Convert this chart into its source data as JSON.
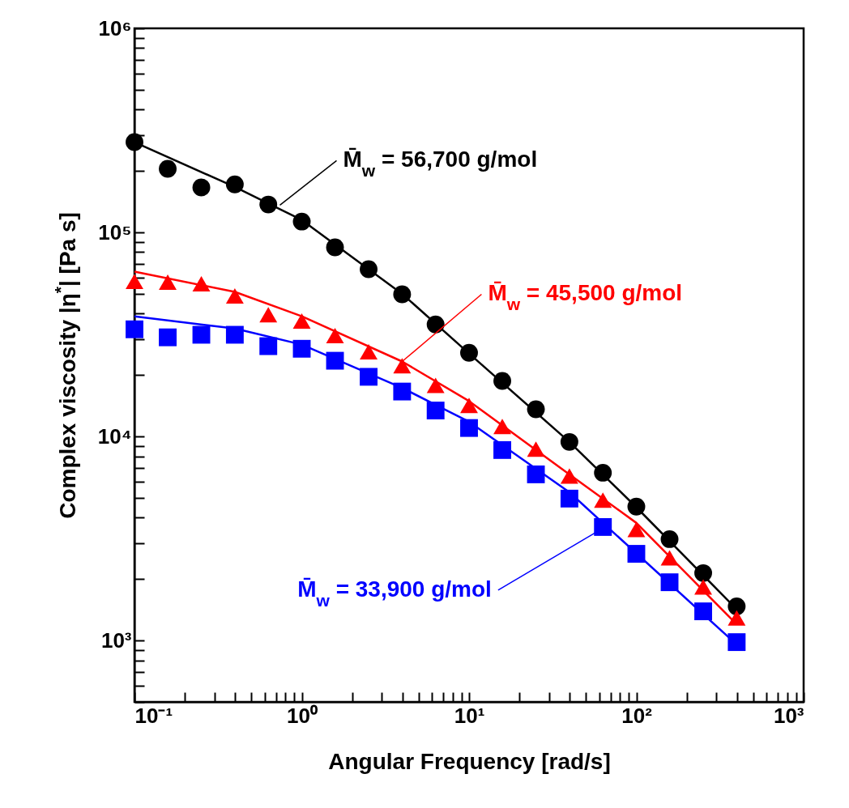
{
  "chart_data": {
    "type": "scatter",
    "xlabel": "Angular Frequency [rad/s]",
    "ylabel": "Complex viscosity |η$^{*}$| [Pa s]",
    "log": "xy",
    "grid": false,
    "xlim": [
      0.1,
      1000
    ],
    "ylim": [
      500,
      1000000
    ],
    "xticks": [
      {
        "value": 0.1,
        "label": "10⁻¹"
      },
      {
        "value": 0.2,
        "label": null
      },
      {
        "value": 0.3,
        "label": null
      },
      {
        "value": 0.4,
        "label": null
      },
      {
        "value": 0.5,
        "label": null
      },
      {
        "value": 0.6,
        "label": null
      },
      {
        "value": 0.7,
        "label": null
      },
      {
        "value": 0.8,
        "label": null
      },
      {
        "value": 0.9,
        "label": null
      },
      {
        "value": 1,
        "label": "10⁰"
      },
      {
        "value": 2,
        "label": null
      },
      {
        "value": 3,
        "label": null
      },
      {
        "value": 4,
        "label": null
      },
      {
        "value": 5,
        "label": null
      },
      {
        "value": 6,
        "label": null
      },
      {
        "value": 7,
        "label": null
      },
      {
        "value": 8,
        "label": null
      },
      {
        "value": 9,
        "label": null
      },
      {
        "value": 10,
        "label": "10¹"
      },
      {
        "value": 20,
        "label": null
      },
      {
        "value": 30,
        "label": null
      },
      {
        "value": 40,
        "label": null
      },
      {
        "value": 50,
        "label": null
      },
      {
        "value": 60,
        "label": null
      },
      {
        "value": 70,
        "label": null
      },
      {
        "value": 80,
        "label": null
      },
      {
        "value": 90,
        "label": null
      },
      {
        "value": 100,
        "label": "10²"
      },
      {
        "value": 200,
        "label": null
      },
      {
        "value": 300,
        "label": null
      },
      {
        "value": 400,
        "label": null
      },
      {
        "value": 500,
        "label": null
      },
      {
        "value": 600,
        "label": null
      },
      {
        "value": 700,
        "label": null
      },
      {
        "value": 800,
        "label": null
      },
      {
        "value": 900,
        "label": null
      },
      {
        "value": 1000,
        "label": "10³"
      }
    ],
    "yticks": [
      {
        "value": 500,
        "label": null
      },
      {
        "value": 600,
        "label": null
      },
      {
        "value": 700,
        "label": null
      },
      {
        "value": 800,
        "label": null
      },
      {
        "value": 900,
        "label": null
      },
      {
        "value": 1000,
        "label": "10³"
      },
      {
        "value": 2000,
        "label": null
      },
      {
        "value": 3000,
        "label": null
      },
      {
        "value": 4000,
        "label": null
      },
      {
        "value": 5000,
        "label": null
      },
      {
        "value": 6000,
        "label": null
      },
      {
        "value": 7000,
        "label": null
      },
      {
        "value": 8000,
        "label": null
      },
      {
        "value": 9000,
        "label": null
      },
      {
        "value": 10000,
        "label": "10⁴"
      },
      {
        "value": 20000,
        "label": null
      },
      {
        "value": 30000,
        "label": null
      },
      {
        "value": 40000,
        "label": null
      },
      {
        "value": 50000,
        "label": null
      },
      {
        "value": 60000,
        "label": null
      },
      {
        "value": 70000,
        "label": null
      },
      {
        "value": 80000,
        "label": null
      },
      {
        "value": 90000,
        "label": null
      },
      {
        "value": 100000,
        "label": "10⁵"
      },
      {
        "value": 200000,
        "label": null
      },
      {
        "value": 300000,
        "label": null
      },
      {
        "value": 400000,
        "label": null
      },
      {
        "value": 500000,
        "label": null
      },
      {
        "value": 600000,
        "label": null
      },
      {
        "value": 700000,
        "label": null
      },
      {
        "value": 800000,
        "label": null
      },
      {
        "value": 900000,
        "label": null
      },
      {
        "value": 1000000,
        "label": "10⁶"
      }
    ],
    "x": [
      0.1,
      0.158,
      0.251,
      0.398,
      0.631,
      1,
      1.58,
      2.51,
      3.98,
      6.31,
      10,
      15.8,
      25.1,
      39.8,
      63.1,
      100,
      158,
      251,
      398
    ],
    "series": [
      {
        "marker": "circle",
        "color": "#000000",
        "values": [
          277000,
          205000,
          166000,
          172000,
          137000,
          113000,
          84500,
          66000,
          49700,
          35400,
          25700,
          18700,
          13600,
          9400,
          6640,
          4530,
          3140,
          2140,
          1470
        ]
      },
      {
        "marker": "triangle",
        "color": "#ff0000",
        "values": [
          57500,
          57000,
          56000,
          48800,
          39500,
          36800,
          31200,
          26000,
          22200,
          17800,
          14200,
          11200,
          8660,
          6400,
          4870,
          3500,
          2540,
          1830,
          1290
        ]
      },
      {
        "marker": "square",
        "color": "#0000ff",
        "values": [
          33500,
          30600,
          31500,
          31500,
          27700,
          26900,
          23500,
          19600,
          16600,
          13400,
          11000,
          8580,
          6520,
          4960,
          3600,
          2660,
          1930,
          1390,
          982
        ]
      },
      {
        "type": "line",
        "line_style": "solid",
        "color": "#000000",
        "x": [
          0.1,
          0.398,
          1,
          3.98,
          10,
          39.8,
          100,
          398
        ],
        "values": [
          277000,
          167000,
          115000,
          50000,
          25500,
          9400,
          4500,
          1420
        ]
      },
      {
        "type": "line",
        "line_style": "solid",
        "color": "#ff0000",
        "x": [
          0.1,
          0.398,
          1,
          3.98,
          10,
          39.8,
          100,
          398
        ],
        "values": [
          64200,
          51100,
          38800,
          23300,
          14900,
          6520,
          3770,
          1200
        ]
      },
      {
        "type": "line",
        "line_style": "solid",
        "color": "#0000ff",
        "x": [
          0.1,
          0.398,
          1,
          3.98,
          10,
          39.8,
          63.1,
          398
        ],
        "values": [
          38800,
          33800,
          28200,
          17300,
          11800,
          5330,
          3770,
          955
        ]
      }
    ],
    "annotations": [
      {
        "text": "M̄$_{w}$ = 56,700 g/mol",
        "x": 0.74,
        "y": 136000
      },
      {
        "text": "M̄$_{w}$ = 45,500 g/mol",
        "x": 3.98,
        "y": 23300
      },
      {
        "text": "M̄$_{w}$ = 33,900 g/mol",
        "x": 65,
        "y": 3600
      }
    ]
  }
}
